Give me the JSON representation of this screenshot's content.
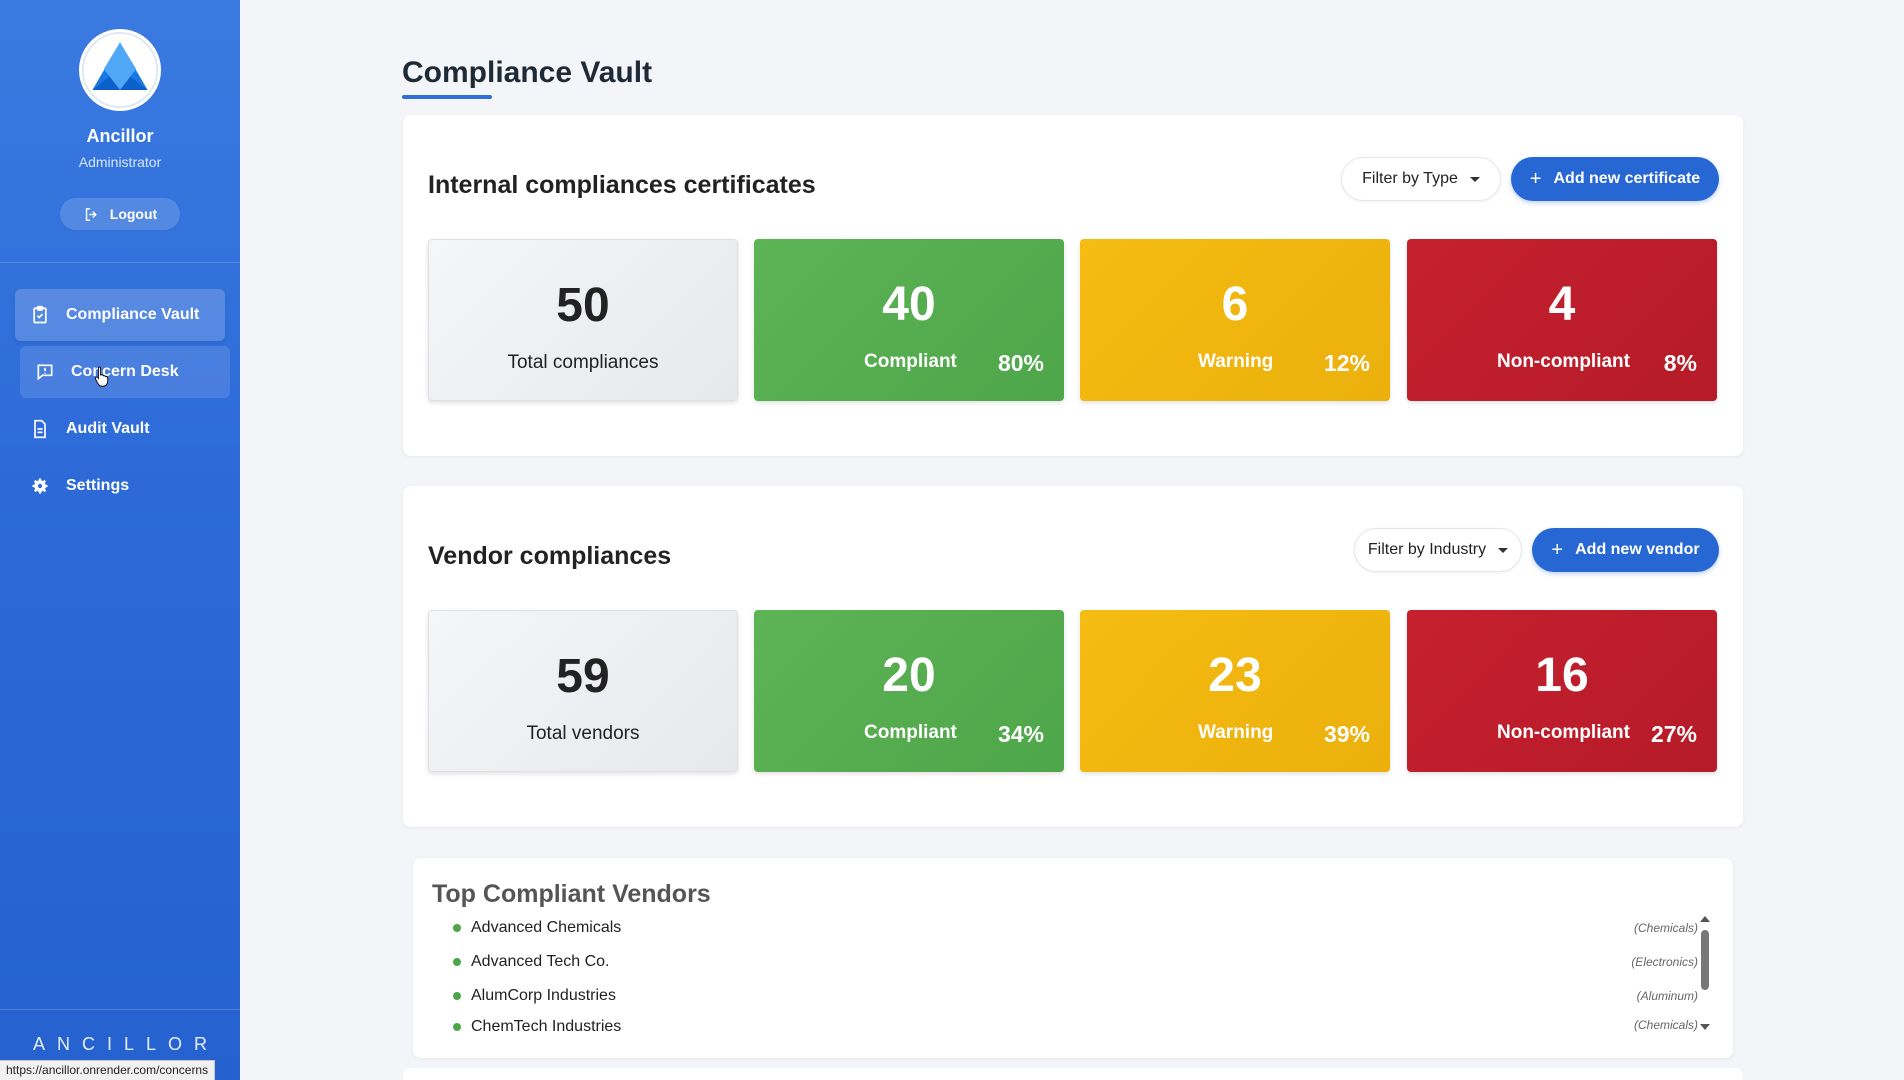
{
  "user": {
    "name": "Ancillor",
    "role": "Administrator",
    "logout_label": "Logout"
  },
  "nav": [
    {
      "label": "Compliance Vault",
      "icon": "clipboard-check-icon"
    },
    {
      "label": "Concern Desk",
      "icon": "message-alert-icon"
    },
    {
      "label": "Audit Vault",
      "icon": "document-icon"
    },
    {
      "label": "Settings",
      "icon": "gear-icon"
    }
  ],
  "brand": "ANCILLOR",
  "status_url": "https://ancillor.onrender.com/concerns",
  "page_title": "Compliance Vault",
  "internal": {
    "title": "Internal compliances certificates",
    "filter_label": "Filter by Type",
    "add_label": "Add new certificate",
    "total": {
      "value": "50",
      "label": "Total compliances"
    },
    "compliant": {
      "value": "40",
      "label": "Compliant",
      "pct": "80%"
    },
    "warning": {
      "value": "6",
      "label": "Warning",
      "pct": "12%"
    },
    "noncompliant": {
      "value": "4",
      "label": "Non-compliant",
      "pct": "8%"
    }
  },
  "vendor": {
    "title": "Vendor compliances",
    "filter_label": "Filter by Industry",
    "add_label": "Add new vendor",
    "total": {
      "value": "59",
      "label": "Total vendors"
    },
    "compliant": {
      "value": "20",
      "label": "Compliant",
      "pct": "34%"
    },
    "warning": {
      "value": "23",
      "label": "Warning",
      "pct": "39%"
    },
    "noncompliant": {
      "value": "16",
      "label": "Non-compliant",
      "pct": "27%"
    }
  },
  "top_vendors": {
    "title": "Top Compliant Vendors",
    "items": [
      {
        "name": "Advanced Chemicals",
        "industry": "(Chemicals)"
      },
      {
        "name": "Advanced Tech Co.",
        "industry": "(Electronics)"
      },
      {
        "name": "AlumCorp Industries",
        "industry": "(Aluminum)"
      },
      {
        "name": "ChemTech Industries",
        "industry": "(Chemicals)"
      }
    ]
  },
  "colors": {
    "sidebar": "#2d6ad8",
    "accent": "#2767d4",
    "green": "#4ea64a",
    "yellow": "#f5bc12",
    "red": "#c6202e"
  }
}
